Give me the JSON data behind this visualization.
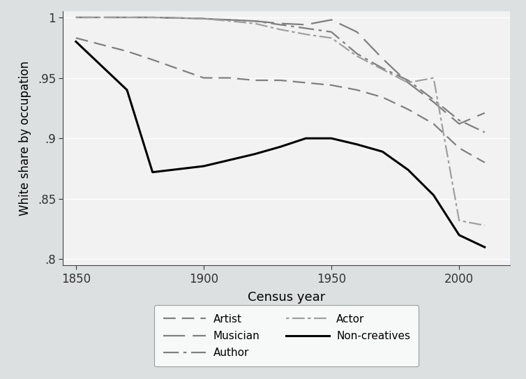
{
  "xlabel": "Census year",
  "ylabel": "White share by occupation",
  "xlim": [
    1845,
    2020
  ],
  "ylim": [
    0.795,
    1.005
  ],
  "yticks": [
    0.8,
    0.85,
    0.9,
    0.95,
    1.0
  ],
  "ytick_labels": [
    ".8",
    ".85",
    ".9",
    ".95",
    "1"
  ],
  "xticks": [
    1850,
    1900,
    1950,
    2000
  ],
  "fig_background": "#dce0e0",
  "plot_background": "#f2f2f2",
  "grid_color": "#ffffff",
  "series": {
    "Artist": {
      "x": [
        1850,
        1870,
        1880,
        1900,
        1910,
        1920,
        1930,
        1940,
        1950,
        1960,
        1970,
        1980,
        1990,
        2000,
        2010
      ],
      "y": [
        0.983,
        0.972,
        0.965,
        0.95,
        0.95,
        0.948,
        0.948,
        0.946,
        0.944,
        0.94,
        0.934,
        0.924,
        0.912,
        0.892,
        0.88
      ],
      "color": "#7f7f7f",
      "dashes": [
        8,
        4
      ],
      "linewidth": 1.6
    },
    "Author": {
      "x": [
        1850,
        1870,
        1880,
        1900,
        1910,
        1920,
        1930,
        1940,
        1950,
        1960,
        1970,
        1980,
        1990,
        2000,
        2010
      ],
      "y": [
        1.0,
        1.0,
        1.0,
        0.999,
        0.998,
        0.997,
        0.994,
        0.991,
        0.988,
        0.97,
        0.958,
        0.948,
        0.932,
        0.915,
        0.905
      ],
      "color": "#7f7f7f",
      "dashes": [
        10,
        3,
        2,
        3
      ],
      "linewidth": 1.6
    },
    "Musician": {
      "x": [
        1850,
        1870,
        1880,
        1900,
        1910,
        1920,
        1930,
        1940,
        1950,
        1960,
        1970,
        1980,
        1990,
        2000,
        2010
      ],
      "y": [
        1.0,
        1.0,
        1.0,
        0.999,
        0.998,
        0.997,
        0.995,
        0.994,
        0.998,
        0.988,
        0.966,
        0.946,
        0.93,
        0.912,
        0.921
      ],
      "color": "#7f7f7f",
      "dashes": [
        14,
        5
      ],
      "linewidth": 1.6
    },
    "Actor": {
      "x": [
        1850,
        1870,
        1880,
        1900,
        1910,
        1920,
        1930,
        1940,
        1950,
        1960,
        1970,
        1980,
        1990,
        2000,
        2010
      ],
      "y": [
        1.0,
        1.0,
        1.0,
        0.999,
        0.997,
        0.995,
        0.99,
        0.986,
        0.983,
        0.968,
        0.957,
        0.946,
        0.95,
        0.832,
        0.828
      ],
      "color": "#9f9f9f",
      "dashes": [
        2,
        2,
        8,
        2
      ],
      "linewidth": 1.6
    },
    "Non-creatives": {
      "x": [
        1850,
        1860,
        1870,
        1880,
        1900,
        1910,
        1920,
        1930,
        1940,
        1950,
        1960,
        1970,
        1980,
        1990,
        2000,
        2010
      ],
      "y": [
        0.98,
        0.96,
        0.94,
        0.872,
        0.877,
        0.882,
        0.887,
        0.893,
        0.9,
        0.9,
        0.895,
        0.889,
        0.874,
        0.853,
        0.82,
        0.81
      ],
      "color": "#000000",
      "dashes": [],
      "linewidth": 2.2
    }
  },
  "legend_order": [
    "Artist",
    "Musician",
    "Author",
    "Actor",
    "Non-creatives"
  ],
  "legend_ncol": 2,
  "legend_fontsize": 11
}
